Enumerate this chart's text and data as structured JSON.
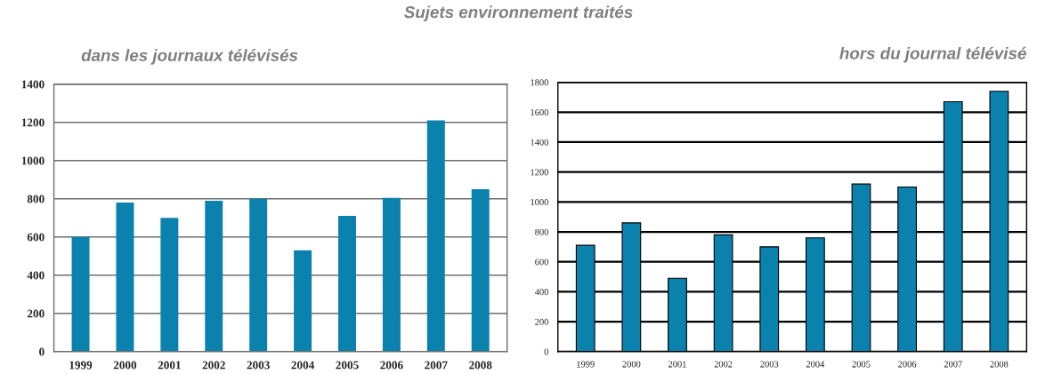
{
  "chart_data": [
    {
      "type": "bar",
      "title": "Sujets environnement traités",
      "subtitle": "dans les journaux télévisés",
      "categories": [
        "1999",
        "2000",
        "2001",
        "2002",
        "2003",
        "2004",
        "2005",
        "2006",
        "2007",
        "2008"
      ],
      "values": [
        600,
        780,
        700,
        790,
        800,
        530,
        710,
        805,
        1210,
        850
      ],
      "color": "#0a82ad",
      "ylim": [
        0,
        1400
      ],
      "yticks": [
        0,
        200,
        400,
        600,
        800,
        1000,
        1200,
        1400
      ],
      "grid": "y"
    },
    {
      "type": "bar",
      "subtitle": "hors du journal télévisé",
      "categories": [
        "1999",
        "2000",
        "2001",
        "2002",
        "2003",
        "2004",
        "2005",
        "2006",
        "2007",
        "2008"
      ],
      "values": [
        710,
        860,
        490,
        780,
        700,
        760,
        1120,
        1100,
        1670,
        1740
      ],
      "color": "#0a82ad",
      "ylim": [
        0,
        1800
      ],
      "yticks": [
        0,
        200,
        400,
        600,
        800,
        1000,
        1200,
        1400,
        1600,
        1800
      ],
      "grid": "y"
    }
  ]
}
